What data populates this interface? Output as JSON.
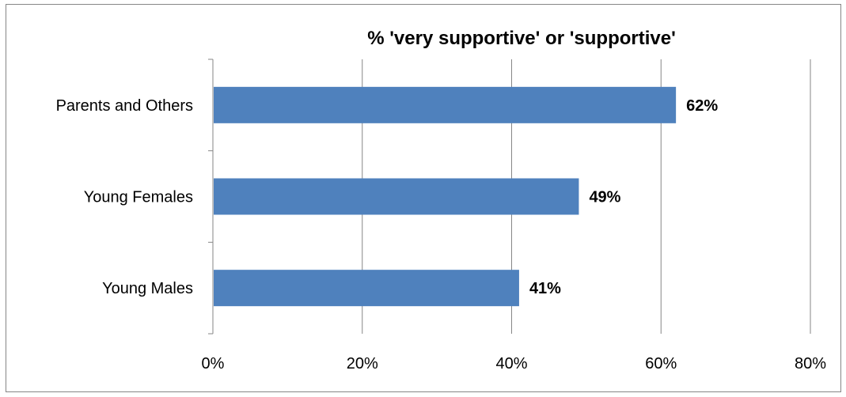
{
  "chart_data": {
    "type": "bar",
    "orientation": "horizontal",
    "title": "% 'very supportive' or 'supportive'",
    "categories": [
      "Parents and Others",
      "Young Females",
      "Young Males"
    ],
    "values": [
      62,
      49,
      41
    ],
    "data_labels": [
      "62%",
      "49%",
      "41%"
    ],
    "xlim": [
      0,
      80
    ],
    "x_ticks": [
      0,
      20,
      40,
      60,
      80
    ],
    "x_tick_labels": [
      "0%",
      "20%",
      "40%",
      "60%",
      "80%"
    ],
    "gridlines": "vertical",
    "bar_color": "#4F81BD",
    "gridline_color": "#868686"
  }
}
